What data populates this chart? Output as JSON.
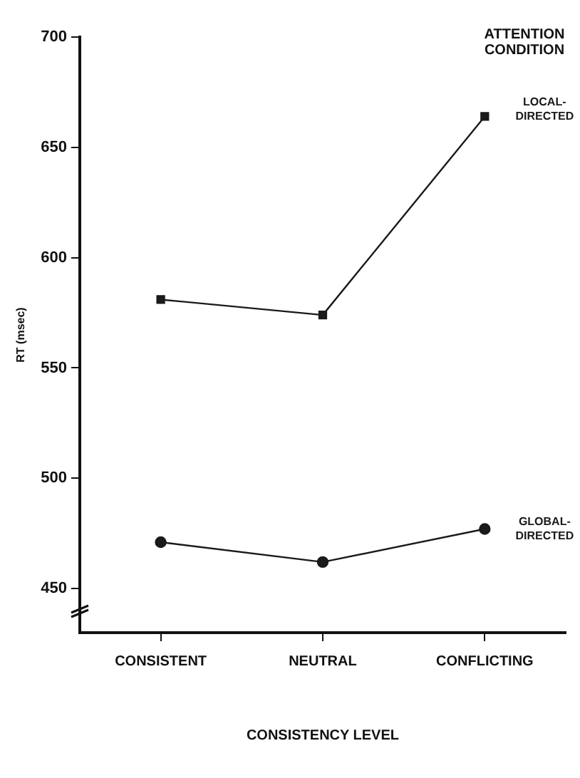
{
  "chart_data": {
    "type": "line",
    "legend_title": "ATTENTION CONDITION",
    "xlabel": "CONSISTENCY LEVEL",
    "ylabel": "RT (msec)",
    "categories": [
      "CONSISTENT",
      "NEUTRAL",
      "CONFLICTING"
    ],
    "series": [
      {
        "name": "LOCAL-DIRECTED",
        "color": "#1a1a1a",
        "marker": "square",
        "values": [
          581,
          574,
          664
        ]
      },
      {
        "name": "GLOBAL-DIRECTED",
        "color": "#1a1a1a",
        "marker": "circle",
        "values": [
          471,
          462,
          477
        ]
      }
    ],
    "ylim": [
      430,
      700
    ],
    "yticks": [
      450,
      500,
      550,
      600,
      650,
      700
    ],
    "grid": false,
    "legend": false,
    "line_style": "solid"
  }
}
